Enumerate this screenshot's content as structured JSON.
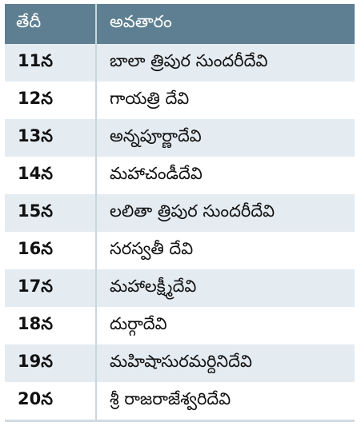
{
  "table": {
    "header": [
      "తేదీ",
      "అవతారం"
    ],
    "rows": [
      [
        "11న",
        "బాలా త్రిపుర సుందరీదేవి"
      ],
      [
        "12న",
        "గాయత్రి దేవి"
      ],
      [
        "13న",
        "అన్నపూర్ణాదేవి"
      ],
      [
        "14న",
        "మహాచండీదేవి"
      ],
      [
        "15న",
        "లలితా త్రిపుర సుందరీదేవి"
      ],
      [
        "16న",
        "సరస్వతీ దేవి"
      ],
      [
        "17న",
        "మహాలక్ష్మీదేవి"
      ],
      [
        "18న",
        "దుర్గాదేవి"
      ],
      [
        "19న",
        "మహిషాసురమర్దినిదేవి"
      ],
      [
        "20న",
        "శ్రీ రాజరాజేశ్వరిదేవి"
      ]
    ]
  }
}
